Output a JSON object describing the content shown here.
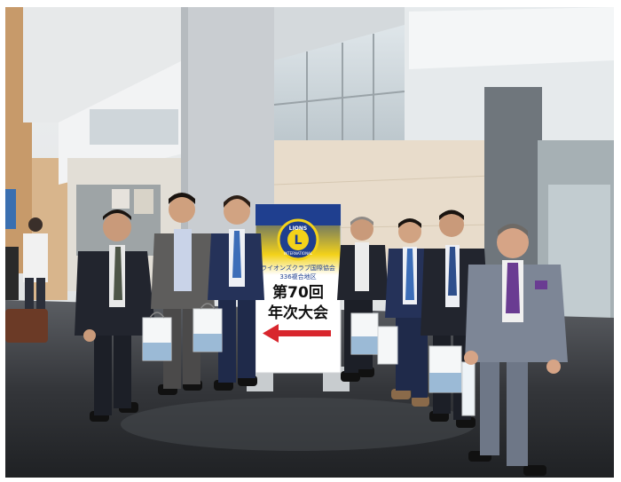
{
  "photo": {
    "sign": {
      "emblem_top": "LIONS",
      "emblem_letter": "L",
      "emblem_bottom": "INTERNATIONAL",
      "line1": "ライオンズクラブ国際協会",
      "line2": "336複合地区",
      "line3": "第70回",
      "line4": "年次大会"
    }
  },
  "colors": {
    "sign_blue": "#1f3f8f",
    "sign_yellow": "#f3d21a",
    "arrow_red": "#d8262d",
    "floor": "#2a2c30",
    "pillar": "#c9cdd1"
  }
}
